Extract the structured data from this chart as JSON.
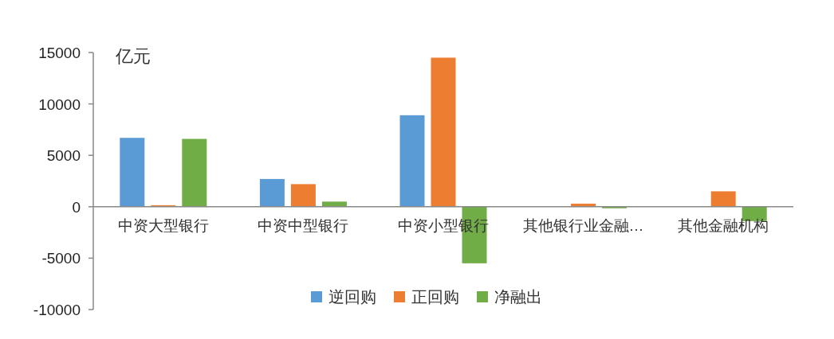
{
  "chart_data": {
    "type": "bar",
    "ylabel": "亿元",
    "categories": [
      "中资大型银行",
      "中资中型银行",
      "中资小型银行",
      "其他银行业金融…",
      "其他金融机构"
    ],
    "series": [
      {
        "name": "逆回购",
        "color": "#5b9bd5",
        "values": [
          6700,
          2700,
          8900,
          0,
          0
        ]
      },
      {
        "name": "正回购",
        "color": "#ed7d31",
        "values": [
          150,
          2200,
          14500,
          300,
          1500
        ]
      },
      {
        "name": "净融出",
        "color": "#70ad47",
        "values": [
          6600,
          500,
          -5500,
          -150,
          -1400
        ]
      }
    ],
    "ylim": [
      -10000,
      15000
    ],
    "yticks": [
      -10000,
      -5000,
      0,
      5000,
      10000,
      15000
    ],
    "grid": false,
    "legend": "bottom"
  }
}
